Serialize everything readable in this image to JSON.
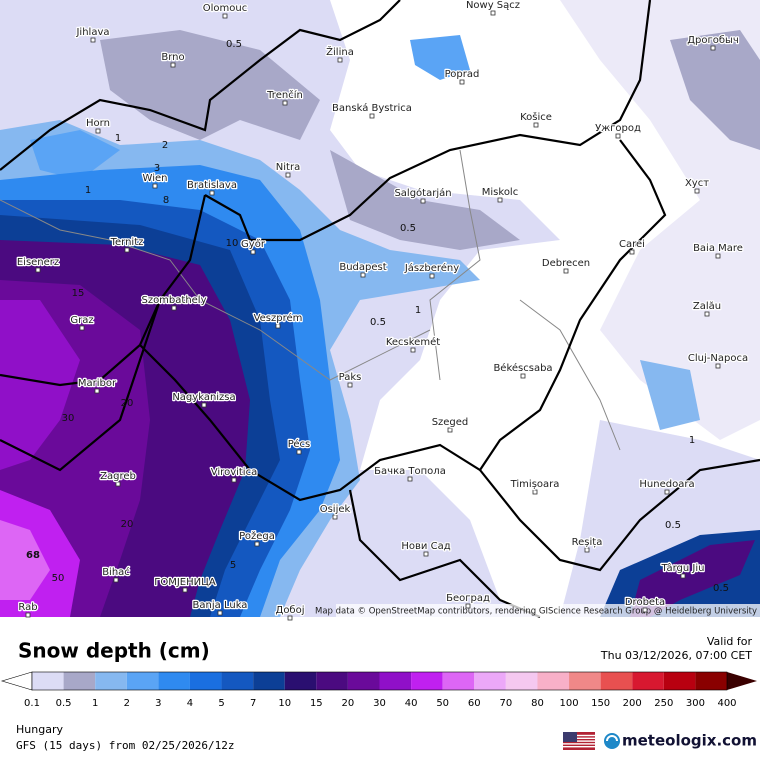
{
  "map": {
    "attribution": "Map data © OpenStreetMap contributors, rendering GIScience Research Group @ Heidelberg University",
    "cities": [
      "Olomouc",
      "Nowy Sącz",
      "Jihlava",
      "Brno",
      "Žilina",
      "Poprad",
      "Дрогобыч",
      "Trenčín",
      "Banská Bystrica",
      "Košice",
      "Ужгород",
      "Horn",
      "Nitra",
      "Wien",
      "Bratislava",
      "Salgótarján",
      "Miskolc",
      "Хуст",
      "Győr",
      "Ternitz",
      "Eisenerz",
      "Budapest",
      "Jászberény",
      "Debrecen",
      "Carei",
      "Baia Mare",
      "Szombathely",
      "Graz",
      "Veszprém",
      "Zalău",
      "Kecskemét",
      "Maribor",
      "Paks",
      "Békéscsaba",
      "Cluj-Napoca",
      "Nagykanizsa",
      "Szeged",
      "Pécs",
      "Virovitica",
      "Бачка Топола",
      "Zagreb",
      "Timișoara",
      "Hunedoara",
      "Osijek",
      "Požega",
      "Нови Сад",
      "Reșița",
      "Târgu Jiu",
      "ГОМЈЕНИЦА",
      "Bihać",
      "Banja Luka",
      "Добој",
      "Београд",
      "Drobeta",
      "Rab"
    ],
    "contour_labels": [
      "0.5",
      "1",
      "2",
      "3",
      "1",
      "0.5",
      "0.5",
      "1",
      "10",
      "15",
      "30",
      "20",
      "20",
      "68",
      "50",
      "1",
      "0.5",
      "0.5",
      "5",
      "8"
    ]
  },
  "legend": {
    "title": "Snow depth (cm)",
    "labels": [
      "0.1",
      "0.5",
      "1",
      "2",
      "3",
      "4",
      "5",
      "7",
      "10",
      "15",
      "20",
      "30",
      "40",
      "50",
      "60",
      "70",
      "80",
      "100",
      "150",
      "200",
      "250",
      "300",
      "400"
    ],
    "colors": [
      "#dcdcf5",
      "#a8a8c8",
      "#86b8f0",
      "#5aa4f5",
      "#2f8af0",
      "#1a6fe0",
      "#1458c0",
      "#0c3f96",
      "#2a0f70",
      "#4b0a80",
      "#6a0a9a",
      "#9010c8",
      "#c020f0",
      "#dd66f5",
      "#eca8f8",
      "#f5c8f0",
      "#f8b0c8",
      "#f08888",
      "#e85050",
      "#d81830",
      "#b80010",
      "#8a0000"
    ],
    "under_color": "#ffffff",
    "over_color": "#3a0000"
  },
  "footer": {
    "valid_label": "Valid for",
    "valid_time": "Thu 03/12/2026, 07:00 CET",
    "region": "Hungary",
    "model": "GFS (15 days) from 02/25/2026/12z",
    "brand": "meteologix.com"
  }
}
